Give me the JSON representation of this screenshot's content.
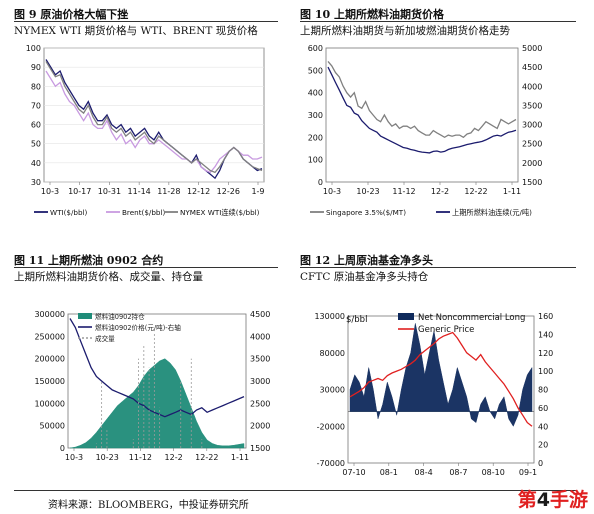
{
  "panels": [
    {
      "title": "图 9  原油价格大幅下挫",
      "subtitle": "NYMEX WTI 期货价格与 WTI、BRENT 现货价格",
      "chart_data": {
        "type": "line",
        "ylim": [
          30,
          100
        ],
        "yticks": [
          30,
          40,
          50,
          60,
          70,
          80,
          90,
          100
        ],
        "xticks": [
          "10-3",
          "10-17",
          "10-31",
          "11-14",
          "11-28",
          "12-12",
          "12-26",
          "1-9"
        ],
        "legend": "bottom",
        "series": [
          {
            "name": "WTI($/bbl)",
            "color": "#1c1c6e",
            "values": [
              94,
              90,
              86,
              88,
              82,
              78,
              74,
              70,
              68,
              72,
              66,
              62,
              62,
              65,
              60,
              58,
              60,
              56,
              58,
              54,
              56,
              58,
              54,
              52,
              56,
              52,
              50,
              48,
              46,
              44,
              42,
              40,
              44,
              38,
              36,
              34,
              32,
              36,
              42,
              46,
              48,
              46,
              42,
              40,
              38,
              36,
              37
            ]
          },
          {
            "name": "Brent($/bbl)",
            "color": "#c89ae0",
            "values": [
              88,
              84,
              80,
              82,
              76,
              72,
              70,
              66,
              62,
              66,
              60,
              58,
              58,
              62,
              56,
              52,
              55,
              50,
              52,
              48,
              52,
              54,
              50,
              50,
              52,
              50,
              48,
              46,
              44,
              42,
              42,
              40,
              42,
              38,
              36,
              35,
              38,
              42,
              44,
              46,
              48,
              46,
              44,
              44,
              42,
              42,
              43
            ]
          },
          {
            "name": "NYMEX WTI连续($/bbl)",
            "color": "#808080",
            "values": [
              93,
              89,
              85,
              86,
              80,
              76,
              72,
              68,
              66,
              70,
              64,
              60,
              60,
              64,
              58,
              56,
              58,
              54,
              56,
              52,
              54,
              56,
              52,
              50,
              54,
              52,
              50,
              48,
              46,
              44,
              42,
              40,
              42,
              40,
              38,
              36,
              35,
              38,
              42,
              46,
              48,
              46,
              42,
              40,
              38,
              37,
              36
            ]
          }
        ]
      }
    },
    {
      "title": "图 10  上期所燃料油期货价格",
      "subtitle": "上期所燃料油期货与新加坡燃油期货价格走势",
      "chart_data": {
        "type": "line",
        "ylim": [
          0,
          600
        ],
        "yticks": [
          0,
          100,
          200,
          300,
          400,
          500,
          600
        ],
        "y2lim": [
          1500,
          5000
        ],
        "y2ticks": [
          1500,
          2000,
          2500,
          3000,
          3500,
          4000,
          4500,
          5000
        ],
        "xticks": [
          "10-3",
          "10-23",
          "11-12",
          "12-2",
          "12-22",
          "1-11"
        ],
        "legend": "bottom",
        "series": [
          {
            "name": "Singapore 3.5%($/MT)",
            "color": "#808080",
            "axis": "left",
            "values": [
              540,
              520,
              490,
              470,
              430,
              400,
              380,
              400,
              340,
              330,
              360,
              320,
              300,
              280,
              270,
              300,
              270,
              250,
              260,
              240,
              250,
              250,
              240,
              250,
              230,
              220,
              210,
              210,
              230,
              220,
              210,
              200,
              210,
              205,
              210,
              210,
              200,
              215,
              220,
              240,
              230,
              250,
              270,
              260,
              250,
              240,
              280,
              270,
              260,
              270,
              280
            ]
          },
          {
            "name": "上期所燃料油连续(元/吨)",
            "color": "#1c1c6e",
            "axis": "right",
            "values": [
              4500,
              4300,
              4100,
              3900,
              3700,
              3500,
              3450,
              3300,
              3250,
              3100,
              3000,
              2900,
              2850,
              2800,
              2700,
              2650,
              2600,
              2550,
              2500,
              2450,
              2400,
              2380,
              2350,
              2330,
              2300,
              2280,
              2270,
              2260,
              2300,
              2310,
              2280,
              2300,
              2350,
              2380,
              2400,
              2420,
              2450,
              2480,
              2500,
              2520,
              2540,
              2560,
              2600,
              2650,
              2700,
              2720,
              2700,
              2750,
              2800,
              2820,
              2850
            ]
          }
        ]
      }
    },
    {
      "title": "图 11  上期所燃油 0902 合约",
      "subtitle": "上期所燃料油期货价格、成交量、持仓量",
      "chart_data": {
        "type": "area",
        "ylim": [
          0,
          300000
        ],
        "yticks": [
          0,
          50000,
          100000,
          150000,
          200000,
          250000,
          300000
        ],
        "y2lim": [
          1500,
          4500
        ],
        "y2ticks": [
          1500,
          2000,
          2500,
          3000,
          3500,
          4000,
          4500
        ],
        "xticks": [
          "10-3",
          "10-23",
          "11-12",
          "12-2",
          "12-22",
          "1-11"
        ],
        "legend": "top-left",
        "series": [
          {
            "name": "燃料油0902持仓",
            "color": "#1f8c79",
            "axis": "left",
            "values": [
              0,
              2000,
              6000,
              12000,
              22000,
              35000,
              50000,
              65000,
              80000,
              95000,
              105000,
              115000,
              125000,
              140000,
              160000,
              175000,
              185000,
              195000,
              200000,
              190000,
              175000,
              150000,
              120000,
              90000,
              60000,
              35000,
              18000,
              10000,
              6000,
              5000,
              5000,
              6000,
              8000,
              10000
            ]
          },
          {
            "name": "燃料油0902价格(元/吨)-右轴",
            "color": "#1c1c6e",
            "axis": "right",
            "values": [
              4400,
              4200,
              3900,
              3600,
              3300,
              3100,
              3000,
              2900,
              2800,
              2750,
              2700,
              2650,
              2600,
              2500,
              2450,
              2350,
              2300,
              2250,
              2200,
              2250,
              2300,
              2350,
              2300,
              2250,
              2350,
              2400,
              2300,
              2350,
              2400,
              2450,
              2500,
              2550,
              2600,
              2650
            ]
          },
          {
            "name": "成交量",
            "color": "#9a9a9a",
            "axis": "left",
            "values": [
              0,
              0,
              0,
              0,
              0,
              10000,
              150000,
              40000,
              0,
              0,
              0,
              0,
              20000,
              200000,
              230000,
              180000,
              260000,
              90000,
              0,
              0,
              0,
              150000,
              0,
              200000,
              0,
              20000,
              0,
              0,
              0,
              0,
              0,
              0,
              0,
              0
            ]
          }
        ]
      }
    },
    {
      "title": "图 12  上周原油基金净多头",
      "subtitle": "CFTC 原油基金净多头持仓",
      "chart_data": {
        "type": "area",
        "ylim": [
          -70000,
          130000
        ],
        "yticks": [
          -70000,
          -20000,
          30000,
          80000,
          130000
        ],
        "y2lim": [
          0,
          160
        ],
        "y2ticks": [
          0,
          20,
          40,
          60,
          80,
          100,
          120,
          140,
          160
        ],
        "xticks": [
          "07-10",
          "08-1",
          "08-4",
          "08-7",
          "08-10",
          "09-1"
        ],
        "ylabel": "$/bbl",
        "legend": "top",
        "series": [
          {
            "name": "Net Noncommercial Long",
            "color": "#0f2a5c",
            "axis": "left",
            "values": [
              30000,
              50000,
              40000,
              20000,
              60000,
              30000,
              -10000,
              10000,
              40000,
              20000,
              -5000,
              30000,
              60000,
              80000,
              120000,
              90000,
              50000,
              80000,
              110000,
              70000,
              40000,
              10000,
              30000,
              60000,
              40000,
              20000,
              -10000,
              -15000,
              10000,
              20000,
              0,
              -10000,
              10000,
              20000,
              -10000,
              -20000,
              -5000,
              30000,
              50000,
              60000
            ]
          },
          {
            "name": "Generic Price",
            "color": "#e02020",
            "axis": "right",
            "values": [
              72,
              75,
              78,
              82,
              88,
              90,
              92,
              90,
              95,
              98,
              100,
              102,
              105,
              108,
              112,
              118,
              122,
              126,
              130,
              135,
              138,
              140,
              142,
              136,
              128,
              120,
              116,
              112,
              118,
              110,
              104,
              98,
              92,
              86,
              78,
              70,
              60,
              52,
              44,
              40
            ]
          }
        ]
      }
    }
  ],
  "source_note": "资料来源：BLOOMBERG，中投证券研究所",
  "watermark": {
    "pre": "第",
    "digit": "4",
    "post": "手游"
  }
}
